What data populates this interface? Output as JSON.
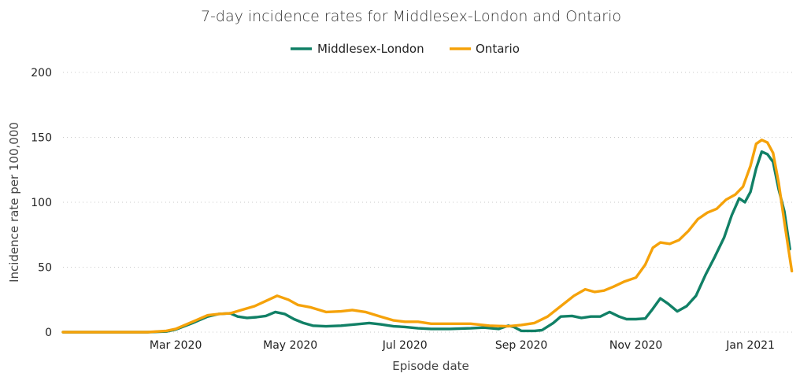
{
  "chart_data": {
    "type": "line",
    "title": "7-day incidence rates for Middlesex-London and Ontario",
    "xlabel": "Episode date",
    "ylabel": "Incidence rate per 100,000",
    "ylim": [
      0,
      200
    ],
    "yticks": [
      0,
      50,
      100,
      150,
      200
    ],
    "xlim": [
      "2020-01-01",
      "2021-01-24"
    ],
    "xticks": [
      {
        "date": "2020-03-01",
        "label": "Mar 2020"
      },
      {
        "date": "2020-05-01",
        "label": "May 2020"
      },
      {
        "date": "2020-07-01",
        "label": "Jul 2020"
      },
      {
        "date": "2020-09-01",
        "label": "Sep 2020"
      },
      {
        "date": "2020-11-01",
        "label": "Nov 2020"
      },
      {
        "date": "2021-01-01",
        "label": "Jan 2021"
      }
    ],
    "grid": true,
    "legend_position": "top-center",
    "series": [
      {
        "name": "Middlesex-London",
        "color": "#118066",
        "points": [
          [
            "2020-01-01",
            0
          ],
          [
            "2020-02-15",
            0
          ],
          [
            "2020-02-25",
            0.5
          ],
          [
            "2020-03-01",
            2
          ],
          [
            "2020-03-10",
            7
          ],
          [
            "2020-03-18",
            12
          ],
          [
            "2020-03-24",
            14
          ],
          [
            "2020-03-30",
            14.5
          ],
          [
            "2020-04-03",
            12
          ],
          [
            "2020-04-08",
            11
          ],
          [
            "2020-04-13",
            11.5
          ],
          [
            "2020-04-18",
            12.5
          ],
          [
            "2020-04-23",
            15.5
          ],
          [
            "2020-04-28",
            14
          ],
          [
            "2020-05-03",
            10
          ],
          [
            "2020-05-08",
            7
          ],
          [
            "2020-05-13",
            5
          ],
          [
            "2020-05-20",
            4.5
          ],
          [
            "2020-05-28",
            5
          ],
          [
            "2020-06-05",
            6
          ],
          [
            "2020-06-12",
            7
          ],
          [
            "2020-06-18",
            6
          ],
          [
            "2020-06-25",
            4.5
          ],
          [
            "2020-07-01",
            4
          ],
          [
            "2020-07-08",
            3
          ],
          [
            "2020-07-15",
            2.5
          ],
          [
            "2020-07-25",
            2.5
          ],
          [
            "2020-08-05",
            3
          ],
          [
            "2020-08-12",
            3.5
          ],
          [
            "2020-08-20",
            2.5
          ],
          [
            "2020-08-25",
            5
          ],
          [
            "2020-08-28",
            4
          ],
          [
            "2020-09-01",
            1
          ],
          [
            "2020-09-08",
            1
          ],
          [
            "2020-09-12",
            1.5
          ],
          [
            "2020-09-18",
            7
          ],
          [
            "2020-09-22",
            12
          ],
          [
            "2020-09-28",
            12.5
          ],
          [
            "2020-10-03",
            11
          ],
          [
            "2020-10-08",
            12
          ],
          [
            "2020-10-13",
            12
          ],
          [
            "2020-10-18",
            15.5
          ],
          [
            "2020-10-23",
            12
          ],
          [
            "2020-10-27",
            10
          ],
          [
            "2020-11-01",
            10
          ],
          [
            "2020-11-06",
            10.5
          ],
          [
            "2020-11-10",
            18
          ],
          [
            "2020-11-14",
            26
          ],
          [
            "2020-11-18",
            22
          ],
          [
            "2020-11-23",
            16
          ],
          [
            "2020-11-28",
            20
          ],
          [
            "2020-12-03",
            28
          ],
          [
            "2020-12-08",
            44
          ],
          [
            "2020-12-13",
            58
          ],
          [
            "2020-12-18",
            73
          ],
          [
            "2020-12-22",
            90
          ],
          [
            "2020-12-26",
            103
          ],
          [
            "2020-12-29",
            100
          ],
          [
            "2021-01-01",
            108
          ],
          [
            "2021-01-04",
            126
          ],
          [
            "2021-01-07",
            139
          ],
          [
            "2021-01-10",
            137
          ],
          [
            "2021-01-13",
            131
          ],
          [
            "2021-01-16",
            110
          ],
          [
            "2021-01-19",
            93
          ],
          [
            "2021-01-22",
            64
          ]
        ]
      },
      {
        "name": "Ontario",
        "color": "#f5a20a",
        "points": [
          [
            "2020-01-01",
            0
          ],
          [
            "2020-02-15",
            0
          ],
          [
            "2020-02-25",
            1
          ],
          [
            "2020-03-01",
            2.5
          ],
          [
            "2020-03-10",
            8
          ],
          [
            "2020-03-18",
            13
          ],
          [
            "2020-03-24",
            14
          ],
          [
            "2020-03-30",
            14.5
          ],
          [
            "2020-04-05",
            17
          ],
          [
            "2020-04-12",
            20
          ],
          [
            "2020-04-18",
            24
          ],
          [
            "2020-04-24",
            28
          ],
          [
            "2020-04-30",
            25
          ],
          [
            "2020-05-05",
            21
          ],
          [
            "2020-05-12",
            19
          ],
          [
            "2020-05-20",
            15.5
          ],
          [
            "2020-05-28",
            16
          ],
          [
            "2020-06-03",
            17
          ],
          [
            "2020-06-10",
            15.5
          ],
          [
            "2020-06-18",
            12
          ],
          [
            "2020-06-25",
            9
          ],
          [
            "2020-07-01",
            8
          ],
          [
            "2020-07-08",
            8
          ],
          [
            "2020-07-15",
            6.5
          ],
          [
            "2020-07-25",
            6.5
          ],
          [
            "2020-08-05",
            6.5
          ],
          [
            "2020-08-15",
            5
          ],
          [
            "2020-08-25",
            4.5
          ],
          [
            "2020-09-01",
            5.5
          ],
          [
            "2020-09-08",
            7
          ],
          [
            "2020-09-15",
            12
          ],
          [
            "2020-09-22",
            20
          ],
          [
            "2020-09-29",
            28
          ],
          [
            "2020-10-05",
            33
          ],
          [
            "2020-10-10",
            31
          ],
          [
            "2020-10-15",
            32
          ],
          [
            "2020-10-20",
            35
          ],
          [
            "2020-10-26",
            39
          ],
          [
            "2020-11-01",
            42
          ],
          [
            "2020-11-06",
            52
          ],
          [
            "2020-11-10",
            65
          ],
          [
            "2020-11-14",
            69
          ],
          [
            "2020-11-19",
            68
          ],
          [
            "2020-11-24",
            71
          ],
          [
            "2020-11-29",
            78
          ],
          [
            "2020-12-04",
            87
          ],
          [
            "2020-12-09",
            92
          ],
          [
            "2020-12-14",
            95
          ],
          [
            "2020-12-19",
            102
          ],
          [
            "2020-12-24",
            106
          ],
          [
            "2020-12-28",
            112
          ],
          [
            "2021-01-01",
            128
          ],
          [
            "2021-01-04",
            145
          ],
          [
            "2021-01-07",
            148
          ],
          [
            "2021-01-10",
            146
          ],
          [
            "2021-01-13",
            138
          ],
          [
            "2021-01-16",
            115
          ],
          [
            "2021-01-19",
            85
          ],
          [
            "2021-01-23",
            47
          ]
        ]
      }
    ]
  }
}
